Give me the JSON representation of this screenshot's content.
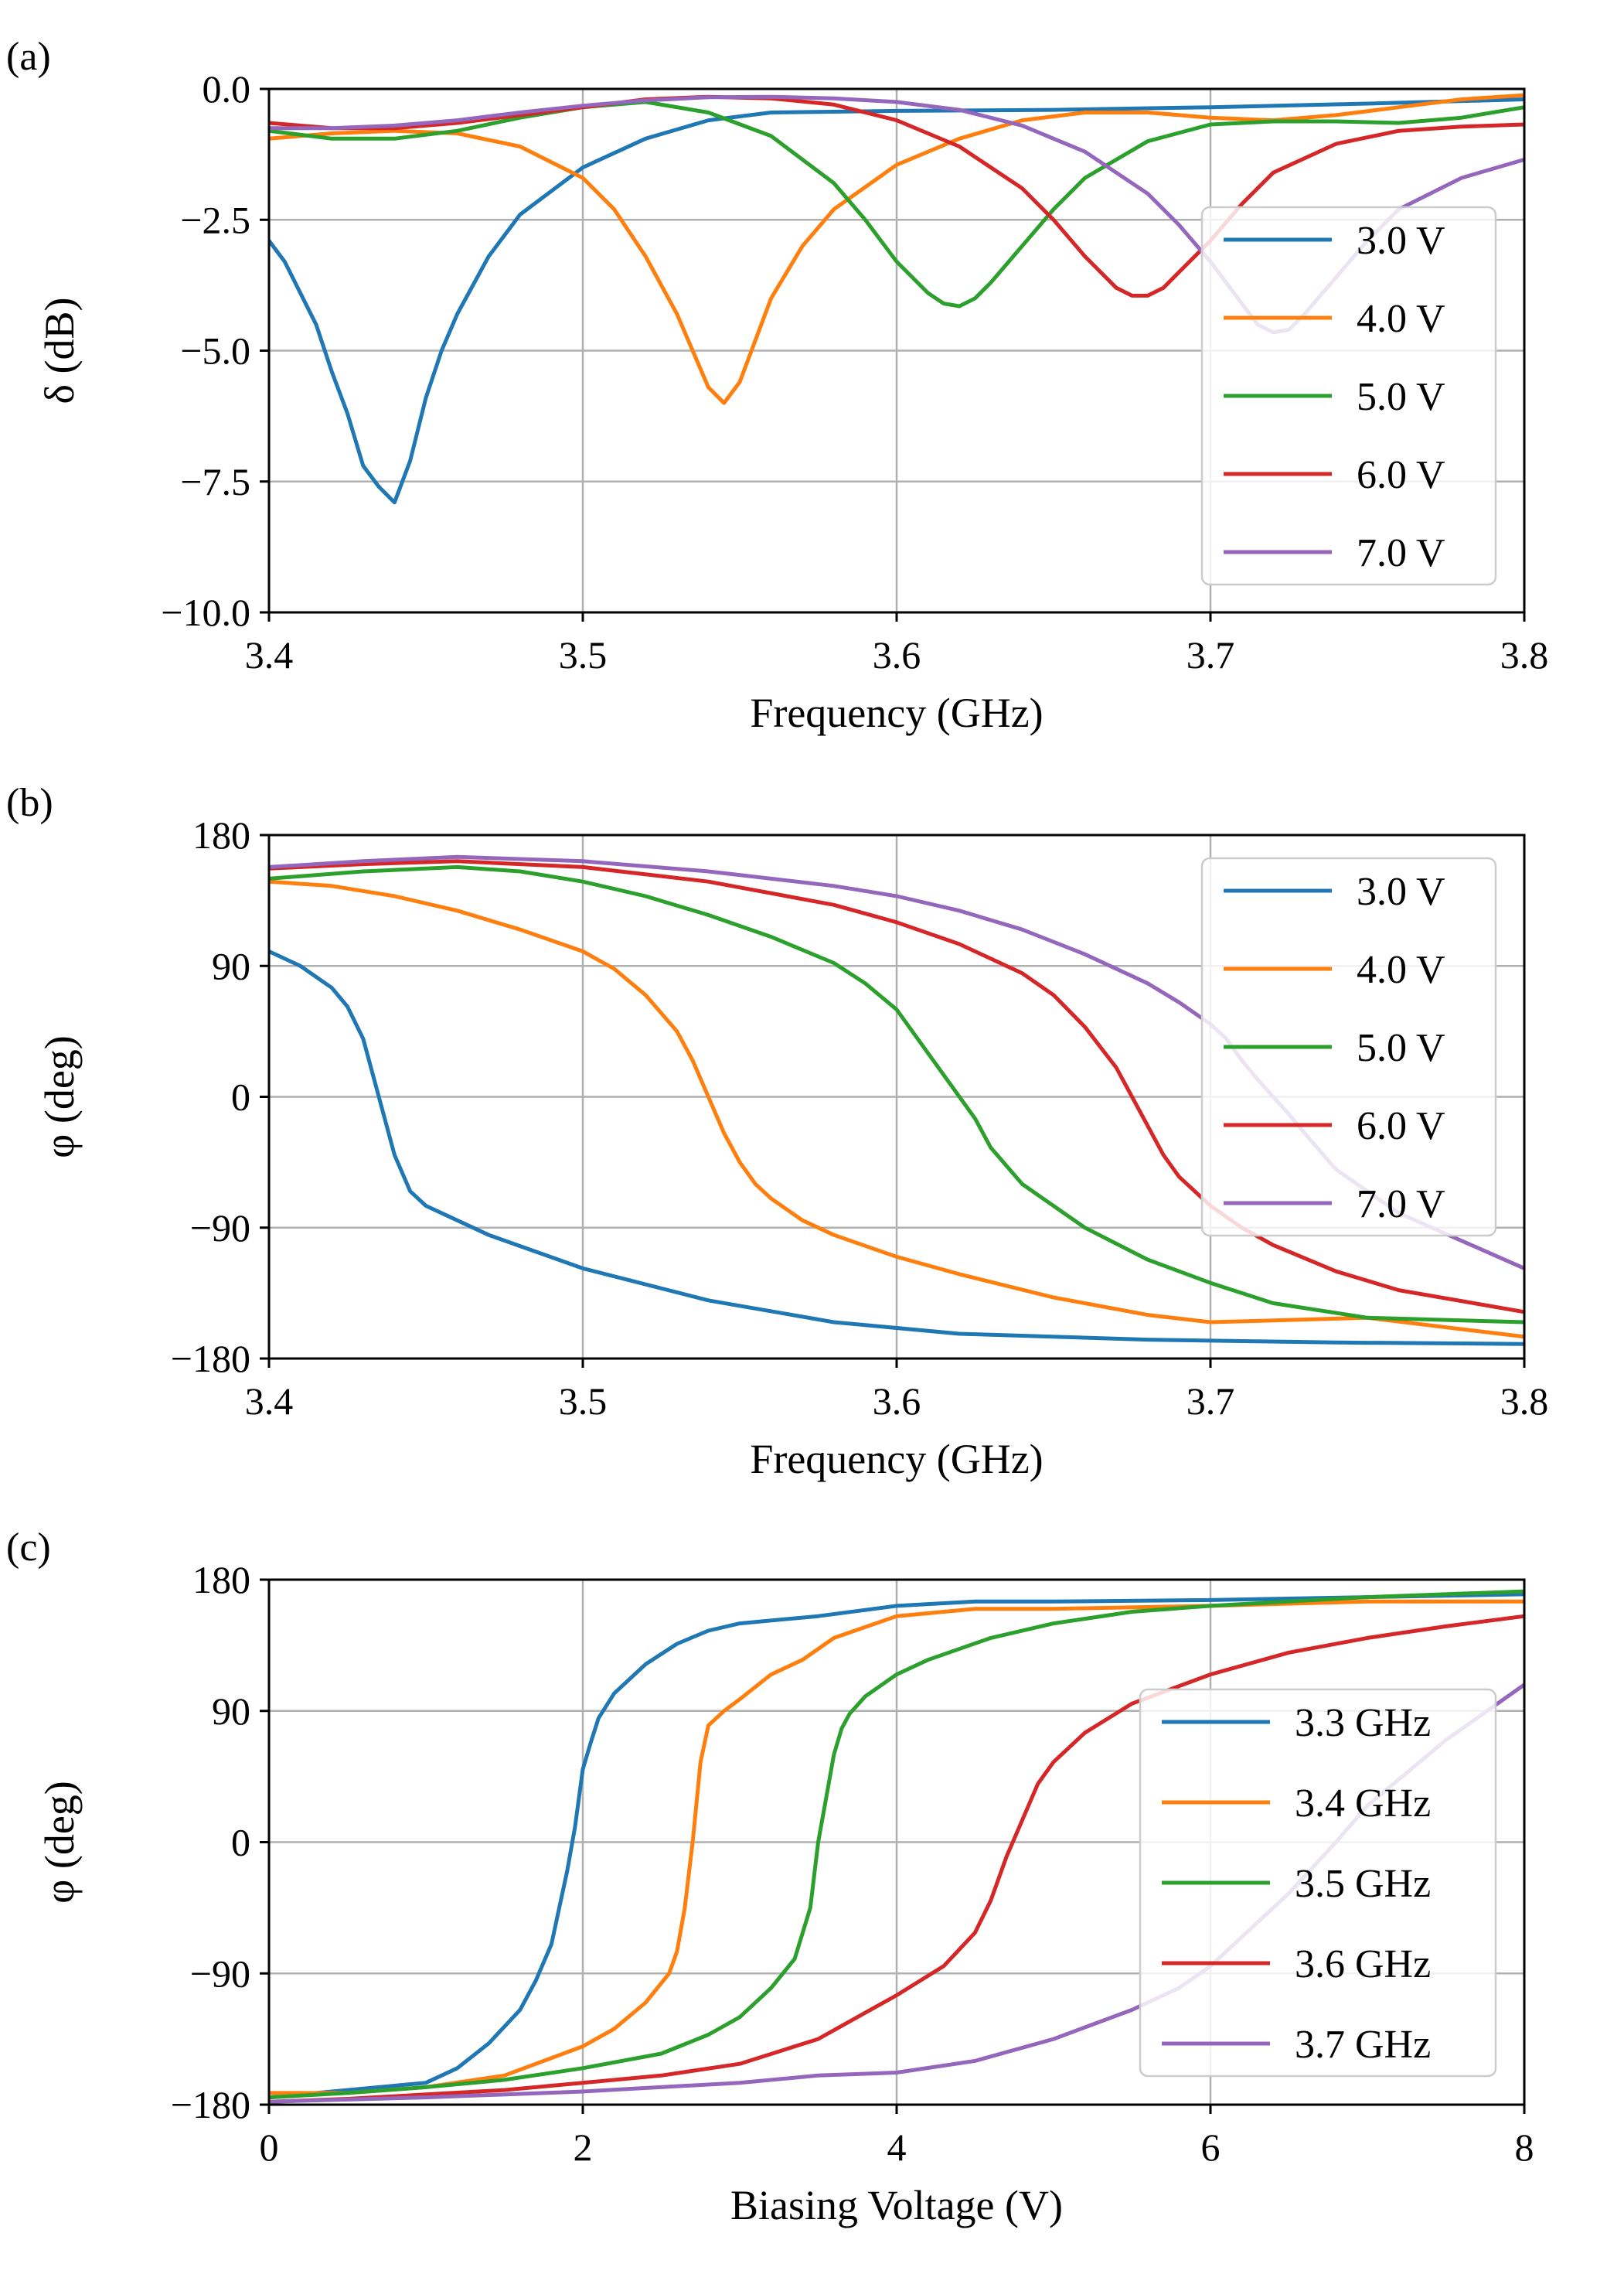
{
  "chart_data": [
    {
      "panel_label": "(a)",
      "type": "line",
      "xlabel": "Frequency (GHz)",
      "ylabel": "δ (dB)",
      "xlim": [
        3.4,
        3.8
      ],
      "ylim": [
        -10.0,
        0.0
      ],
      "xticks": [
        3.4,
        3.5,
        3.6,
        3.7,
        3.8
      ],
      "xtick_labels": [
        "3.4",
        "3.5",
        "3.6",
        "3.7",
        "3.8"
      ],
      "yticks": [
        0.0,
        -2.5,
        -5.0,
        -7.5,
        -10.0
      ],
      "ytick_labels": [
        "0.0",
        "−2.5",
        "−5.0",
        "−7.5",
        "−10.0"
      ],
      "grid": true,
      "legend_position": "right",
      "series": [
        {
          "name": "3.0 V",
          "color": "#1f77b4",
          "x": [
            3.4,
            3.405,
            3.41,
            3.415,
            3.42,
            3.425,
            3.43,
            3.435,
            3.44,
            3.445,
            3.45,
            3.455,
            3.46,
            3.47,
            3.48,
            3.5,
            3.52,
            3.54,
            3.56,
            3.6,
            3.65,
            3.7,
            3.75,
            3.8
          ],
          "y": [
            -2.9,
            -3.3,
            -3.9,
            -4.5,
            -5.4,
            -6.2,
            -7.2,
            -7.6,
            -7.9,
            -7.1,
            -5.9,
            -5.0,
            -4.3,
            -3.2,
            -2.4,
            -1.5,
            -0.95,
            -0.6,
            -0.45,
            -0.42,
            -0.4,
            -0.35,
            -0.28,
            -0.2
          ]
        },
        {
          "name": "4.0 V",
          "color": "#ff7f0e",
          "x": [
            3.4,
            3.42,
            3.44,
            3.46,
            3.48,
            3.5,
            3.51,
            3.52,
            3.53,
            3.535,
            3.54,
            3.545,
            3.55,
            3.555,
            3.56,
            3.57,
            3.58,
            3.6,
            3.62,
            3.64,
            3.66,
            3.68,
            3.7,
            3.72,
            3.74,
            3.76,
            3.78,
            3.8
          ],
          "y": [
            -0.95,
            -0.85,
            -0.8,
            -0.85,
            -1.1,
            -1.7,
            -2.3,
            -3.2,
            -4.3,
            -5.0,
            -5.7,
            -6.0,
            -5.6,
            -4.8,
            -4.0,
            -3.0,
            -2.3,
            -1.45,
            -0.95,
            -0.6,
            -0.45,
            -0.45,
            -0.55,
            -0.6,
            -0.5,
            -0.35,
            -0.2,
            -0.12
          ]
        },
        {
          "name": "5.0 V",
          "color": "#2ca02c",
          "x": [
            3.4,
            3.42,
            3.44,
            3.46,
            3.48,
            3.5,
            3.52,
            3.54,
            3.56,
            3.58,
            3.59,
            3.6,
            3.61,
            3.615,
            3.62,
            3.625,
            3.63,
            3.64,
            3.65,
            3.66,
            3.68,
            3.7,
            3.72,
            3.74,
            3.76,
            3.78,
            3.8
          ],
          "y": [
            -0.8,
            -0.95,
            -0.95,
            -0.8,
            -0.55,
            -0.35,
            -0.25,
            -0.45,
            -0.9,
            -1.8,
            -2.5,
            -3.3,
            -3.9,
            -4.1,
            -4.15,
            -4.0,
            -3.7,
            -3.0,
            -2.3,
            -1.7,
            -1.0,
            -0.68,
            -0.62,
            -0.62,
            -0.65,
            -0.55,
            -0.35
          ]
        },
        {
          "name": "6.0 V",
          "color": "#d62728",
          "x": [
            3.4,
            3.42,
            3.44,
            3.46,
            3.48,
            3.5,
            3.52,
            3.54,
            3.56,
            3.58,
            3.6,
            3.62,
            3.64,
            3.65,
            3.66,
            3.67,
            3.675,
            3.68,
            3.685,
            3.69,
            3.7,
            3.71,
            3.72,
            3.74,
            3.76,
            3.78,
            3.8
          ],
          "y": [
            -0.65,
            -0.75,
            -0.75,
            -0.65,
            -0.5,
            -0.35,
            -0.2,
            -0.15,
            -0.18,
            -0.3,
            -0.6,
            -1.1,
            -1.9,
            -2.5,
            -3.2,
            -3.8,
            -3.95,
            -3.95,
            -3.8,
            -3.5,
            -2.9,
            -2.2,
            -1.6,
            -1.05,
            -0.8,
            -0.72,
            -0.68
          ]
        },
        {
          "name": "7.0 V",
          "color": "#9467bd",
          "x": [
            3.4,
            3.42,
            3.44,
            3.46,
            3.48,
            3.5,
            3.52,
            3.54,
            3.56,
            3.58,
            3.6,
            3.62,
            3.64,
            3.66,
            3.68,
            3.69,
            3.7,
            3.71,
            3.715,
            3.72,
            3.725,
            3.73,
            3.74,
            3.75,
            3.76,
            3.78,
            3.8
          ],
          "y": [
            -0.75,
            -0.75,
            -0.7,
            -0.6,
            -0.45,
            -0.32,
            -0.22,
            -0.16,
            -0.15,
            -0.18,
            -0.25,
            -0.4,
            -0.7,
            -1.2,
            -2.0,
            -2.6,
            -3.3,
            -4.1,
            -4.5,
            -4.65,
            -4.6,
            -4.3,
            -3.6,
            -2.9,
            -2.3,
            -1.7,
            -1.35
          ]
        }
      ]
    },
    {
      "panel_label": "(b)",
      "type": "line",
      "xlabel": "Frequency (GHz)",
      "ylabel": "φ (deg)",
      "xlim": [
        3.4,
        3.8
      ],
      "ylim": [
        -180,
        180
      ],
      "xticks": [
        3.4,
        3.5,
        3.6,
        3.7,
        3.8
      ],
      "xtick_labels": [
        "3.4",
        "3.5",
        "3.6",
        "3.7",
        "3.8"
      ],
      "yticks": [
        180,
        90,
        0,
        -90,
        -180
      ],
      "ytick_labels": [
        "180",
        "90",
        "0",
        "−90",
        "−180"
      ],
      "grid": true,
      "legend_position": "upper right",
      "series": [
        {
          "name": "3.0 V",
          "color": "#1f77b4",
          "x": [
            3.4,
            3.41,
            3.42,
            3.425,
            3.43,
            3.435,
            3.44,
            3.445,
            3.45,
            3.46,
            3.47,
            3.5,
            3.54,
            3.58,
            3.62,
            3.68,
            3.74,
            3.8
          ],
          "y": [
            100,
            90,
            75,
            62,
            40,
            0,
            -40,
            -65,
            -75,
            -85,
            -95,
            -118,
            -140,
            -155,
            -163,
            -167,
            -169,
            -170
          ]
        },
        {
          "name": "4.0 V",
          "color": "#ff7f0e",
          "x": [
            3.4,
            3.42,
            3.44,
            3.46,
            3.48,
            3.5,
            3.51,
            3.52,
            3.53,
            3.535,
            3.54,
            3.545,
            3.55,
            3.555,
            3.56,
            3.57,
            3.58,
            3.6,
            3.62,
            3.65,
            3.68,
            3.7,
            3.75,
            3.8
          ],
          "y": [
            148,
            145,
            138,
            128,
            115,
            100,
            88,
            70,
            45,
            25,
            0,
            -25,
            -45,
            -60,
            -70,
            -85,
            -95,
            -110,
            -122,
            -138,
            -150,
            -155,
            -152,
            -165
          ]
        },
        {
          "name": "5.0 V",
          "color": "#2ca02c",
          "x": [
            3.4,
            3.43,
            3.46,
            3.48,
            3.5,
            3.52,
            3.54,
            3.56,
            3.58,
            3.59,
            3.6,
            3.61,
            3.615,
            3.62,
            3.625,
            3.63,
            3.64,
            3.66,
            3.68,
            3.7,
            3.72,
            3.75,
            3.8
          ],
          "y": [
            150,
            155,
            158,
            155,
            148,
            138,
            125,
            110,
            92,
            78,
            60,
            30,
            15,
            0,
            -15,
            -35,
            -60,
            -90,
            -112,
            -128,
            -142,
            -152,
            -155
          ]
        },
        {
          "name": "6.0 V",
          "color": "#d62728",
          "x": [
            3.4,
            3.43,
            3.46,
            3.5,
            3.54,
            3.58,
            3.6,
            3.62,
            3.64,
            3.65,
            3.66,
            3.67,
            3.675,
            3.68,
            3.685,
            3.69,
            3.7,
            3.71,
            3.72,
            3.74,
            3.76,
            3.8
          ],
          "y": [
            157,
            160,
            162,
            158,
            148,
            132,
            120,
            105,
            85,
            70,
            48,
            20,
            0,
            -20,
            -40,
            -55,
            -75,
            -90,
            -102,
            -120,
            -133,
            -148
          ]
        },
        {
          "name": "7.0 V",
          "color": "#9467bd",
          "x": [
            3.4,
            3.43,
            3.46,
            3.5,
            3.54,
            3.58,
            3.6,
            3.62,
            3.64,
            3.66,
            3.68,
            3.69,
            3.7,
            3.705,
            3.71,
            3.715,
            3.72,
            3.725,
            3.73,
            3.74,
            3.76,
            3.8
          ],
          "y": [
            158,
            162,
            165,
            162,
            155,
            145,
            138,
            128,
            115,
            98,
            78,
            65,
            50,
            40,
            25,
            12,
            0,
            -12,
            -25,
            -50,
            -80,
            -118
          ]
        }
      ]
    },
    {
      "panel_label": "(c)",
      "type": "line",
      "xlabel": "Biasing Voltage (V)",
      "ylabel": "φ (deg)",
      "xlim": [
        0,
        8
      ],
      "ylim": [
        -180,
        180
      ],
      "xticks": [
        0,
        2,
        4,
        6,
        8
      ],
      "xtick_labels": [
        "0",
        "2",
        "4",
        "6",
        "8"
      ],
      "yticks": [
        180,
        90,
        0,
        -90,
        -180
      ],
      "ytick_labels": [
        "180",
        "90",
        "0",
        "−90",
        "−180"
      ],
      "grid": true,
      "legend_position": "lower right",
      "series": [
        {
          "name": "3.3 GHz",
          "color": "#1f77b4",
          "x": [
            0,
            0.5,
            1.0,
            1.2,
            1.4,
            1.6,
            1.7,
            1.8,
            1.85,
            1.9,
            1.95,
            2.0,
            2.05,
            2.1,
            2.2,
            2.4,
            2.6,
            2.8,
            3.0,
            3.5,
            4.0,
            4.5,
            5.0,
            6.0,
            7.0,
            8.0
          ],
          "y": [
            -175,
            -170,
            -165,
            -155,
            -138,
            -115,
            -95,
            -70,
            -45,
            -20,
            10,
            50,
            68,
            85,
            102,
            122,
            136,
            145,
            150,
            155,
            162,
            165,
            165,
            166,
            168,
            170
          ]
        },
        {
          "name": "3.4 GHz",
          "color": "#ff7f0e",
          "x": [
            0,
            0.5,
            1.0,
            1.5,
            2.0,
            2.2,
            2.4,
            2.55,
            2.6,
            2.65,
            2.7,
            2.75,
            2.8,
            2.9,
            3.0,
            3.2,
            3.4,
            3.6,
            4.0,
            4.5,
            5.0,
            6.0,
            7.0,
            8.0
          ],
          "y": [
            -172,
            -172,
            -168,
            -160,
            -140,
            -128,
            -110,
            -90,
            -75,
            -45,
            0,
            55,
            80,
            90,
            98,
            115,
            125,
            140,
            155,
            160,
            160,
            162,
            165,
            165
          ]
        },
        {
          "name": "3.5 GHz",
          "color": "#2ca02c",
          "x": [
            0,
            0.5,
            1.0,
            1.5,
            2.0,
            2.5,
            2.8,
            3.0,
            3.2,
            3.35,
            3.45,
            3.5,
            3.55,
            3.6,
            3.65,
            3.7,
            3.8,
            4.0,
            4.2,
            4.6,
            5.0,
            5.5,
            6.0,
            7.0,
            8.0
          ],
          "y": [
            -175,
            -172,
            -168,
            -163,
            -155,
            -145,
            -132,
            -120,
            -100,
            -80,
            -45,
            0,
            30,
            60,
            78,
            88,
            100,
            115,
            125,
            140,
            150,
            158,
            162,
            168,
            172
          ]
        },
        {
          "name": "3.6 GHz",
          "color": "#d62728",
          "x": [
            0,
            0.5,
            1.0,
            1.5,
            2.0,
            2.5,
            3.0,
            3.5,
            4.0,
            4.3,
            4.5,
            4.6,
            4.7,
            4.8,
            4.9,
            5.0,
            5.2,
            5.5,
            6.0,
            6.5,
            7.0,
            7.5,
            8.0
          ],
          "y": [
            -178,
            -176,
            -173,
            -170,
            -165,
            -160,
            -152,
            -135,
            -105,
            -85,
            -62,
            -40,
            -10,
            15,
            40,
            55,
            75,
            95,
            115,
            130,
            140,
            148,
            155
          ]
        },
        {
          "name": "3.7 GHz",
          "color": "#9467bd",
          "x": [
            0,
            1.0,
            2.0,
            3.0,
            3.5,
            4.0,
            4.5,
            5.0,
            5.5,
            5.8,
            6.0,
            6.2,
            6.5,
            6.8,
            7.0,
            7.5,
            8.0
          ],
          "y": [
            -178,
            -175,
            -171,
            -165,
            -160,
            -158,
            -150,
            -135,
            -115,
            -100,
            -85,
            -65,
            -35,
            0,
            25,
            70,
            108
          ]
        }
      ]
    }
  ]
}
